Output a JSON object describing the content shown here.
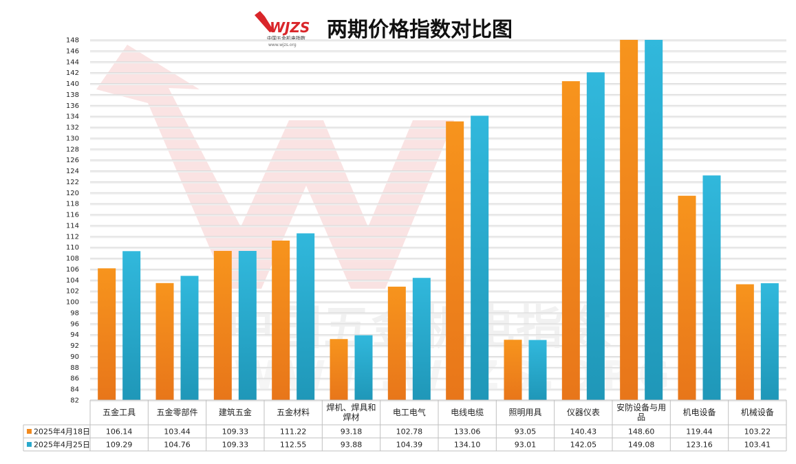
{
  "title": "两期价格指数对比图",
  "logo": {
    "text": "WJZS",
    "subtitle": "中国五金机电指数",
    "url": "www.wjzs.org"
  },
  "watermark": {
    "text": "中国五金机电指数",
    "url": "WWW.WJZS.ORG"
  },
  "colors": {
    "series1": "#f28a1e",
    "series2": "#2aa9cc",
    "grid": "#d9d9d9"
  },
  "chart_data": {
    "type": "bar",
    "title": "两期价格指数对比图",
    "xlabel": "",
    "ylabel": "",
    "ylim": [
      82,
      148
    ],
    "ytick_step": 2,
    "grid": true,
    "legend": "data-table-left",
    "categories": [
      "五金工具",
      "五金零部件",
      "建筑五金",
      "五金材料",
      "焊机、焊具和焊材",
      "电工电气",
      "电线电缆",
      "照明用具",
      "仪器仪表",
      "安防设备与用品",
      "机电设备",
      "机械设备"
    ],
    "series": [
      {
        "name": "2025年4月18日",
        "values": [
          106.14,
          103.44,
          109.33,
          111.22,
          93.18,
          102.78,
          133.06,
          93.05,
          140.43,
          148.6,
          119.44,
          103.22
        ]
      },
      {
        "name": "2025年4月25日",
        "values": [
          109.29,
          104.76,
          109.33,
          112.55,
          93.88,
          104.39,
          134.1,
          93.01,
          142.05,
          149.08,
          123.16,
          103.41
        ]
      }
    ],
    "table_values": [
      [
        "106.14",
        "103.44",
        "109.33",
        "111.22",
        "93.18",
        "102.78",
        "133.06",
        "93.05",
        "140.43",
        "148.60",
        "119.44",
        "103.22"
      ],
      [
        "109.29",
        "104.76",
        "109.33",
        "112.55",
        "93.88",
        "104.39",
        "134.10",
        "93.01",
        "142.05",
        "149.08",
        "123.16",
        "103.41"
      ]
    ]
  }
}
